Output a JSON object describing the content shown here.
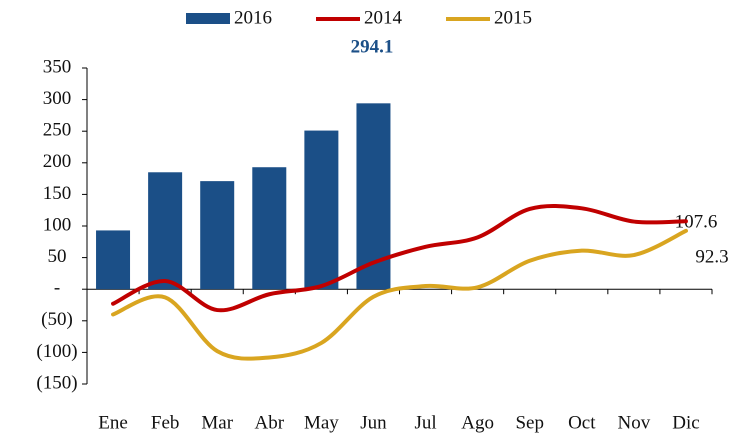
{
  "chart_data": {
    "type": "bar-line",
    "categories": [
      "Ene",
      "Feb",
      "Mar",
      "Abr",
      "May",
      "Jun",
      "Jul",
      "Ago",
      "Sep",
      "Oct",
      "Nov",
      "Dic"
    ],
    "series": [
      {
        "name": "2016",
        "type": "bar",
        "color": "#1b4f87",
        "values": [
          93,
          185,
          171,
          193,
          251,
          294.1,
          null,
          null,
          null,
          null,
          null,
          null
        ]
      },
      {
        "name": "2014",
        "type": "line",
        "color": "#c00000",
        "values": [
          -23,
          13,
          -33,
          -8,
          5,
          42,
          67,
          82,
          127,
          128,
          107,
          107.6
        ]
      },
      {
        "name": "2015",
        "type": "line",
        "color": "#d9a520",
        "values": [
          -40,
          -13,
          -98,
          -108,
          -85,
          -12,
          5,
          3,
          45,
          61,
          54,
          92.3
        ]
      }
    ],
    "ylim": [
      -150,
      350
    ],
    "yticks": [
      {
        "value": -150,
        "label": "(150)"
      },
      {
        "value": -100,
        "label": "(100)"
      },
      {
        "value": -50,
        "label": "(50)"
      },
      {
        "value": 0,
        "label": "-"
      },
      50,
      100,
      150,
      200,
      250,
      300,
      350
    ],
    "grid": false,
    "legend": "top"
  }
}
